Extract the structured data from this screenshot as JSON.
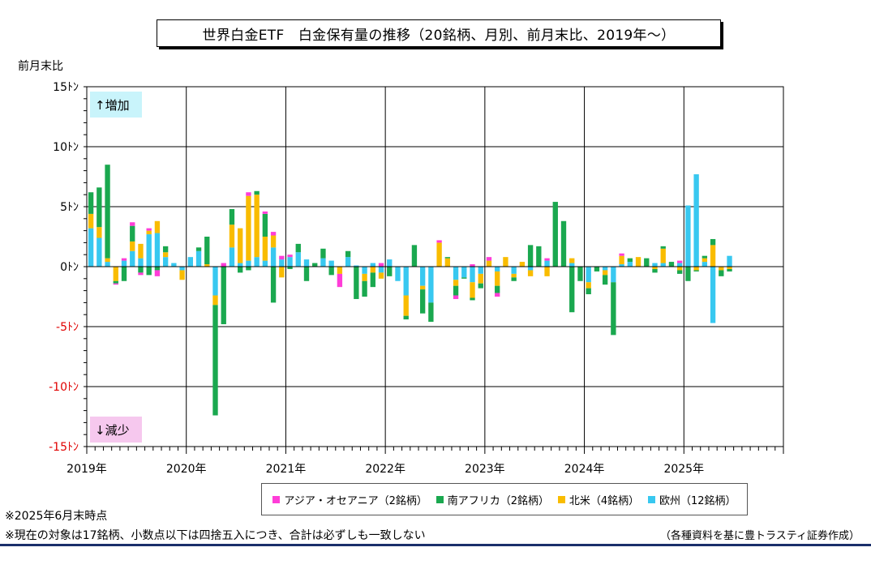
{
  "title": "世界白金ETF　白金保有量の推移（20銘柄、月別、前月末比、2019年～）",
  "notes": [
    "※2025年6月末時点",
    "※現在の対象は17銘柄、小数点以下は四捨五入につき、合計は必ずしも一致しない"
  ],
  "source": "（各種資料を基に豊トラスティ証券作成）",
  "chart_data": {
    "type": "bar",
    "stacked": true,
    "ylabel": "前月末比",
    "ylim": [
      -15,
      15
    ],
    "ytick_labels": [
      "15ﾄﾝ",
      "10ﾄﾝ",
      "5ﾄﾝ",
      "0ﾄﾝ",
      "-5ﾄﾝ",
      "-10ﾄﾝ",
      "-15ﾄﾝ"
    ],
    "year_labels": [
      "2019年",
      "2020年",
      "2021年",
      "2022年",
      "2023年",
      "2024年",
      "2025年"
    ],
    "annotations": {
      "increase": "↑増加",
      "decrease": "↓減少"
    },
    "grid": true,
    "legend_position": "bottom",
    "categories": [
      "2019-01",
      "2019-02",
      "2019-03",
      "2019-04",
      "2019-05",
      "2019-06",
      "2019-07",
      "2019-08",
      "2019-09",
      "2019-10",
      "2019-11",
      "2019-12",
      "2020-01",
      "2020-02",
      "2020-03",
      "2020-04",
      "2020-05",
      "2020-06",
      "2020-07",
      "2020-08",
      "2020-09",
      "2020-10",
      "2020-11",
      "2020-12",
      "2021-01",
      "2021-02",
      "2021-03",
      "2021-04",
      "2021-05",
      "2021-06",
      "2021-07",
      "2021-08",
      "2021-09",
      "2021-10",
      "2021-11",
      "2021-12",
      "2022-01",
      "2022-02",
      "2022-03",
      "2022-04",
      "2022-05",
      "2022-06",
      "2022-07",
      "2022-08",
      "2022-09",
      "2022-10",
      "2022-11",
      "2022-12",
      "2023-01",
      "2023-02",
      "2023-03",
      "2023-04",
      "2023-05",
      "2023-06",
      "2023-07",
      "2023-08",
      "2023-09",
      "2023-10",
      "2023-11",
      "2023-12",
      "2024-01",
      "2024-02",
      "2024-03",
      "2024-04",
      "2024-05",
      "2024-06",
      "2024-07",
      "2024-08",
      "2024-09",
      "2024-10",
      "2024-11",
      "2024-12",
      "2025-01",
      "2025-02",
      "2025-03",
      "2025-04",
      "2025-05",
      "2025-06"
    ],
    "series": [
      {
        "name": "アジア・オセアニア（2銘柄）",
        "color": "#ff3dd8",
        "values": [
          0,
          0,
          0,
          -0.1,
          0.2,
          0.3,
          -0.2,
          0.2,
          -0.5,
          0,
          0,
          0,
          0,
          0,
          0,
          0,
          0.3,
          0,
          0,
          0.3,
          0,
          0.2,
          0.3,
          0.3,
          0.2,
          0,
          0,
          0,
          0,
          0,
          -1.1,
          0,
          0,
          0,
          0,
          0.3,
          0,
          0,
          0,
          0,
          0,
          0,
          0.2,
          0,
          -0.3,
          0,
          0.2,
          0,
          0.3,
          -0.3,
          0,
          0,
          0,
          0,
          0,
          0.2,
          0,
          0,
          0,
          0,
          0,
          0,
          0,
          0,
          0.2,
          0,
          0,
          0,
          0,
          0,
          0,
          0.2,
          0,
          0,
          0,
          0,
          0,
          0
        ]
      },
      {
        "name": "南アフリカ（2銘柄）",
        "color": "#1aa84f",
        "values": [
          1.8,
          3.3,
          7.8,
          -0.2,
          -1.2,
          1.3,
          -0.5,
          -0.7,
          -0.3,
          0.5,
          0,
          0,
          0,
          0.3,
          2.3,
          -9.2,
          -4.8,
          1.3,
          -0.5,
          -0.3,
          0.3,
          1.9,
          -3.0,
          0,
          -0.2,
          0.7,
          -1.2,
          0.3,
          0.8,
          -0.7,
          0,
          0.5,
          -2.7,
          -1.3,
          -1.2,
          0,
          -0.8,
          0,
          -0.3,
          1.8,
          -2.0,
          -1.6,
          0,
          0.1,
          -0.8,
          -0.1,
          -0.2,
          -0.4,
          0,
          -0.6,
          0,
          -0.3,
          0,
          1.8,
          1.7,
          0,
          5.4,
          3.8,
          -3.8,
          -1.2,
          -0.5,
          -0.4,
          -0.8,
          -4.4,
          0,
          0.3,
          0,
          0.7,
          -0.3,
          0.2,
          0.4,
          -0.3,
          -1.2,
          -0.1,
          0.2,
          0.5,
          -0.5,
          -0.2
        ]
      },
      {
        "name": "北米（4銘柄）",
        "color": "#f9bc00",
        "values": [
          1.2,
          0.9,
          0.3,
          -1.2,
          0,
          0.8,
          1.2,
          0.3,
          1.0,
          0.4,
          0,
          -0.8,
          0,
          0,
          0.2,
          -0.8,
          0,
          1.9,
          2.9,
          5.4,
          5.2,
          2.0,
          1.0,
          -0.9,
          0,
          0,
          0,
          0,
          0,
          0,
          -0.6,
          0,
          0,
          -0.6,
          -0.5,
          -0.5,
          0,
          0,
          -1.7,
          0,
          -0.3,
          0,
          2.0,
          0.7,
          -0.5,
          0,
          -1.3,
          -0.8,
          0.5,
          -1.2,
          0.8,
          -0.3,
          0.4,
          -0.5,
          0,
          -0.8,
          0,
          0,
          0.4,
          0,
          -0.5,
          0,
          -0.4,
          0,
          0.7,
          0,
          0.8,
          0,
          -0.2,
          1.2,
          0,
          -0.3,
          0,
          -0.3,
          0.3,
          1.8,
          -0.3,
          -0.2
        ]
      },
      {
        "name": "欧州（12銘柄）",
        "color": "#38c8f0",
        "values": [
          3.2,
          2.4,
          0.4,
          0,
          0.5,
          1.3,
          0.7,
          2.7,
          2.8,
          0.8,
          0.3,
          -0.3,
          0.8,
          1.3,
          0,
          -2.4,
          0,
          1.6,
          0.3,
          0.5,
          0.8,
          0.5,
          1.6,
          0.6,
          0.8,
          1.2,
          0.6,
          0,
          0.7,
          0.5,
          0,
          0.8,
          0.1,
          -0.6,
          0.3,
          -0.5,
          0.6,
          -1.2,
          -2.4,
          0,
          -1.6,
          -3.0,
          0,
          0,
          -1.1,
          -0.9,
          -1.3,
          -0.6,
          0,
          -0.4,
          0,
          -0.6,
          0,
          -0.3,
          0,
          0.5,
          0,
          0,
          0.3,
          0,
          -1.3,
          0,
          -0.3,
          -1.3,
          0.2,
          0.4,
          0,
          0,
          0.3,
          0.3,
          0,
          0.3,
          5.1,
          7.7,
          0.4,
          -4.7,
          0,
          0.9
        ]
      }
    ]
  }
}
